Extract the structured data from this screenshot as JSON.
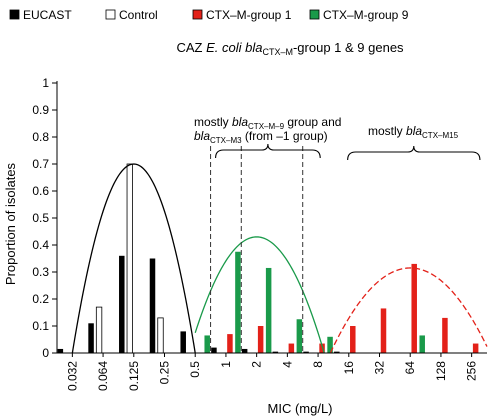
{
  "chart_data": {
    "type": "bar",
    "title": "CAZ",
    "title_species": "E. coli",
    "title_gene": "bla",
    "title_gene_sub": "CTX–M",
    "title_suffix": "-group 1 & 9 genes",
    "xlabel": "MIC (mg/L)",
    "ylabel": "Proportion of isolates",
    "ylim": [
      0,
      1.0
    ],
    "yticks": [
      "0",
      "0.1",
      "0.2",
      "0.3",
      "0.4",
      "0.5",
      "0.6",
      "0.7",
      "0.8",
      "0.9",
      "1"
    ],
    "legend_position": "top",
    "grid": false,
    "categories": [
      "0.032",
      "0.064",
      "0.125",
      "0.25",
      "0.5",
      "1",
      "2",
      "4",
      "8",
      "16",
      "32",
      "64",
      "128",
      "256"
    ],
    "series": [
      {
        "name": "EUCAST",
        "color": "#000000",
        "values": [
          0.015,
          0.11,
          0.36,
          0.35,
          0.08,
          0.02,
          0.015,
          0.005,
          0.005,
          0.005,
          0.0,
          0.0,
          0.0,
          0.0
        ]
      },
      {
        "name": "Control",
        "color": "#ffffff",
        "values": [
          0.0,
          0.17,
          0.7,
          0.13,
          0.0,
          0.0,
          0.0,
          0.0,
          0.0,
          0.0,
          0.0,
          0.0,
          0.0,
          0.0
        ]
      },
      {
        "name": "CTX–M-group 1",
        "color": "#e32119",
        "values": [
          0.0,
          0.0,
          0.0,
          0.0,
          0.0,
          0.07,
          0.1,
          0.035,
          0.035,
          0.1,
          0.165,
          0.33,
          0.13,
          0.035
        ]
      },
      {
        "name": "CTX–M-group 9",
        "color": "#1a9a4a",
        "values": [
          0.0,
          0.0,
          0.0,
          0.0,
          0.065,
          0.375,
          0.315,
          0.125,
          0.06,
          0.0,
          0.0,
          0.065,
          0.0,
          0.0
        ]
      }
    ],
    "fitted_curves": [
      {
        "style": "solid",
        "color": "#000000",
        "center_log2_mic": -3,
        "peak": 0.7,
        "ends": [
          -5,
          -1
        ]
      },
      {
        "style": "solid",
        "color": "#1a9a4a",
        "center_log2_mic": 1,
        "peak": 0.43,
        "ends": [
          -1,
          3.2
        ]
      },
      {
        "style": "dashed",
        "color": "#e32119",
        "center_log2_mic": 6,
        "peak": 0.315,
        "ends": [
          3.4,
          8.5
        ]
      }
    ],
    "vertical_cutoffs_log2_mic": [
      -0.5,
      0.5,
      2.5
    ],
    "annotations": [
      {
        "lines": [
          [
            "mostly ",
            "bla",
            "CTX–M–9",
            " group and"
          ],
          [
            "",
            "bla",
            "CTX–M3",
            " (from –1 group)"
          ]
        ],
        "brace_mic_range": [
          -0.5,
          3.2
        ]
      },
      {
        "lines": [
          [
            "mostly ",
            "bla",
            "CTX–M15",
            ""
          ]
        ],
        "brace_mic_range": [
          3.8,
          8.4
        ]
      }
    ]
  }
}
